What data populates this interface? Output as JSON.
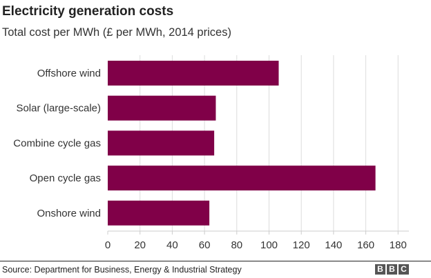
{
  "header": {
    "title": "Electricity generation costs",
    "subtitle": "Total cost per MWh (£ per MWh, 2014 prices)"
  },
  "footer": {
    "source": "Source: Department for Business, Energy & Industrial Strategy",
    "logo": [
      "B",
      "B",
      "C"
    ]
  },
  "colors": {
    "bar": "#800048",
    "grid": "#dcdcdc"
  },
  "chart_data": {
    "type": "bar",
    "orientation": "horizontal",
    "categories": [
      "Offshore wind",
      "Solar (large-scale)",
      "Combine cycle gas",
      "Open cycle gas",
      "Onshore wind"
    ],
    "values": [
      106,
      67,
      66,
      166,
      63
    ],
    "xlim": [
      0,
      185
    ],
    "xticks": [
      0,
      20,
      40,
      60,
      80,
      100,
      120,
      140,
      160,
      180
    ],
    "grid": true
  }
}
